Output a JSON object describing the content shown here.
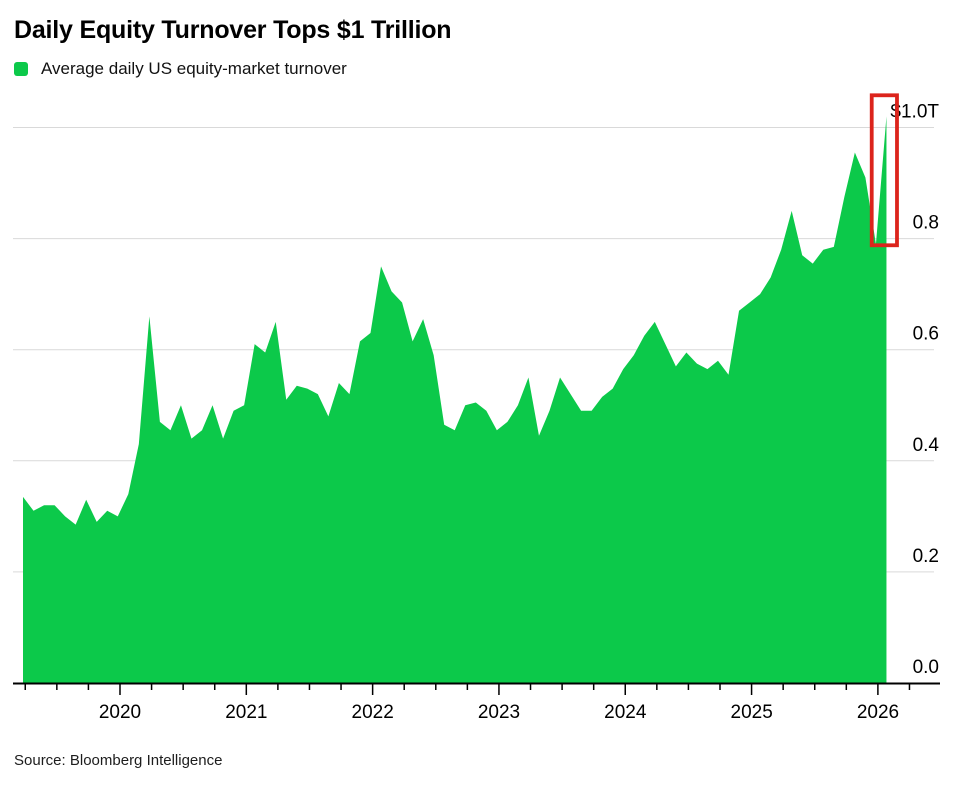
{
  "header": {
    "title": "Daily Equity Turnover Tops $1 Trillion",
    "legend": {
      "label": "Average daily US equity-market turnover",
      "swatch_color": "#0cc94a"
    }
  },
  "chart_data": {
    "type": "area",
    "title": "Daily Equity Turnover Tops $1 Trillion",
    "series_name": "Average daily US equity-market turnover",
    "unit_hint": "$T (USD trillions per day)",
    "grid": true,
    "legend_position": "top-left",
    "yaxis_side": "right",
    "ylim": [
      0,
      1.06
    ],
    "area_color": "#0cc94a",
    "grid_color": "#d9d9d9",
    "axis_color": "#000000",
    "y_ticks": [
      {
        "value": 0.0,
        "label": "0.0"
      },
      {
        "value": 0.2,
        "label": "0.2"
      },
      {
        "value": 0.4,
        "label": "0.4"
      },
      {
        "value": 0.6,
        "label": "0.6"
      },
      {
        "value": 0.8,
        "label": "0.8"
      },
      {
        "value": 1.0,
        "label": "$1.0T"
      }
    ],
    "x_ticks": [
      "2020",
      "2021",
      "2022",
      "2023",
      "2024",
      "2025",
      "2026"
    ],
    "x": [
      "2019-03",
      "2019-04",
      "2019-05",
      "2019-06",
      "2019-07",
      "2019-08",
      "2019-09",
      "2019-10",
      "2019-11",
      "2019-12",
      "2020-01",
      "2020-02",
      "2020-03",
      "2020-04",
      "2020-05",
      "2020-06",
      "2020-07",
      "2020-08",
      "2020-09",
      "2020-10",
      "2020-11",
      "2020-12",
      "2021-01",
      "2021-02",
      "2021-03",
      "2021-04",
      "2021-05",
      "2021-06",
      "2021-07",
      "2021-08",
      "2021-09",
      "2021-10",
      "2021-11",
      "2021-12",
      "2022-01",
      "2022-02",
      "2022-03",
      "2022-04",
      "2022-05",
      "2022-06",
      "2022-07",
      "2022-08",
      "2022-09",
      "2022-10",
      "2022-11",
      "2022-12",
      "2023-01",
      "2023-02",
      "2023-03",
      "2023-04",
      "2023-05",
      "2023-06",
      "2023-07",
      "2023-08",
      "2023-09",
      "2023-10",
      "2023-11",
      "2023-12",
      "2024-01",
      "2024-02",
      "2024-03",
      "2024-04",
      "2024-05",
      "2024-06",
      "2024-07",
      "2024-08",
      "2024-09",
      "2024-10",
      "2024-11",
      "2024-12",
      "2025-01",
      "2025-02",
      "2025-03",
      "2025-04",
      "2025-05",
      "2025-06",
      "2025-07",
      "2025-08",
      "2025-09",
      "2025-10",
      "2025-11",
      "2025-12",
      "2026-01"
    ],
    "values": [
      0.335,
      0.31,
      0.32,
      0.32,
      0.3,
      0.285,
      0.33,
      0.29,
      0.31,
      0.3,
      0.34,
      0.43,
      0.66,
      0.47,
      0.455,
      0.5,
      0.44,
      0.455,
      0.5,
      0.44,
      0.49,
      0.5,
      0.61,
      0.595,
      0.65,
      0.51,
      0.535,
      0.53,
      0.52,
      0.48,
      0.54,
      0.52,
      0.615,
      0.63,
      0.75,
      0.705,
      0.685,
      0.615,
      0.655,
      0.59,
      0.465,
      0.455,
      0.5,
      0.505,
      0.49,
      0.455,
      0.47,
      0.5,
      0.55,
      0.445,
      0.49,
      0.55,
      0.52,
      0.49,
      0.49,
      0.515,
      0.53,
      0.565,
      0.59,
      0.625,
      0.65,
      0.61,
      0.57,
      0.595,
      0.575,
      0.565,
      0.58,
      0.555,
      0.67,
      0.685,
      0.7,
      0.73,
      0.78,
      0.85,
      0.77,
      0.755,
      0.78,
      0.785,
      0.875,
      0.955,
      0.91,
      0.79,
      1.02
    ],
    "annotation": {
      "shape": "highlight-rect",
      "color": "#dc241c",
      "highlights": "2026-01",
      "value_range": [
        0.788,
        1.058
      ]
    }
  },
  "footer": {
    "source": "Source: Bloomberg Intelligence"
  }
}
